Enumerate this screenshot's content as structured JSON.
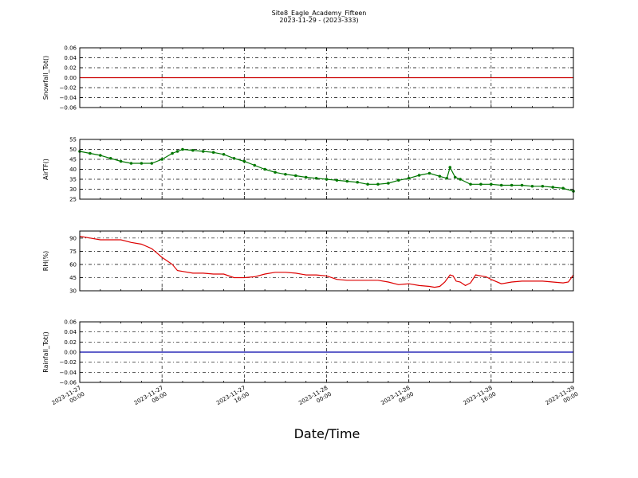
{
  "title_line1": "Site8_Eagle_Academy_Fifteen",
  "title_line2": "2023-11-29 - (2023-333)",
  "xlabel": "Date/Time",
  "x_ticks": [
    [
      "2023-11-27",
      "00:00"
    ],
    [
      "2023-11-27",
      "08:00"
    ],
    [
      "2023-11-27",
      "16:00"
    ],
    [
      "2023-11-28",
      "00:00"
    ],
    [
      "2023-11-28",
      "08:00"
    ],
    [
      "2023-11-28",
      "16:00"
    ],
    [
      "2023-11-29",
      "00:00"
    ]
  ],
  "chart_data": [
    {
      "type": "line",
      "ylabel": "Snowfall_Tot()",
      "ylim": [
        -0.06,
        0.06
      ],
      "yticks": [
        -0.06,
        -0.04,
        -0.02,
        0.0,
        0.02,
        0.04,
        0.06
      ],
      "ytick_labels": [
        "−0.06",
        "−0.04",
        "−0.02",
        "0.00",
        "0.02",
        "0.04",
        "0.06"
      ],
      "grid": true,
      "color": "#cc0000",
      "markers": false,
      "series": [
        {
          "x_hours": [
            0,
            48
          ],
          "values": [
            0,
            0
          ]
        }
      ]
    },
    {
      "type": "line",
      "ylabel": "AirTF()",
      "ylim": [
        25,
        55
      ],
      "yticks": [
        25,
        30,
        35,
        40,
        45,
        50,
        55
      ],
      "ytick_labels": [
        "25",
        "30",
        "35",
        "40",
        "45",
        "50",
        "55"
      ],
      "grid": true,
      "color": "#007700",
      "markers": true,
      "series": [
        {
          "x_hours": [
            0,
            1,
            2,
            3,
            4,
            5,
            6,
            7,
            8,
            9,
            9.5,
            10,
            11,
            12,
            13,
            14,
            15,
            16,
            17,
            18,
            19,
            20,
            21,
            22,
            23,
            24,
            25,
            26,
            27,
            28,
            29,
            30,
            31,
            32,
            33,
            34,
            35,
            35.7,
            36,
            36.5,
            37,
            38,
            39,
            40,
            41,
            42,
            43,
            44,
            45,
            46,
            47,
            48
          ],
          "values": [
            49,
            48,
            47,
            45.5,
            44,
            43,
            43,
            43,
            45,
            48,
            49,
            50,
            49.5,
            49,
            48.5,
            47.5,
            45.5,
            44,
            42,
            40,
            38.5,
            37.5,
            36.8,
            36,
            35.5,
            35,
            34.5,
            34,
            33.5,
            32.5,
            32.5,
            33,
            34.5,
            35.5,
            37,
            38,
            36.5,
            35.5,
            41,
            36,
            35,
            32.5,
            32.5,
            32.5,
            32,
            32,
            32,
            31.5,
            31.5,
            31,
            30.5,
            29
          ]
        }
      ]
    },
    {
      "type": "line",
      "ylabel": "RH(%)",
      "ylim": [
        30,
        98
      ],
      "yticks": [
        30,
        45,
        60,
        75,
        90
      ],
      "ytick_labels": [
        "30",
        "45",
        "60",
        "75",
        "90"
      ],
      "grid": true,
      "color": "#dd0000",
      "markers": false,
      "series": [
        {
          "x_hours": [
            0,
            1,
            2,
            3,
            4,
            5,
            6,
            7,
            8,
            9,
            9.5,
            10,
            11,
            12,
            13,
            14,
            15,
            16,
            17,
            18,
            19,
            20,
            21,
            22,
            23,
            24,
            25,
            26,
            27,
            28,
            29,
            30,
            31,
            32,
            33,
            34,
            34.5,
            35,
            35.5,
            36,
            36.3,
            36.6,
            37,
            37.5,
            38,
            38.5,
            39,
            39.5,
            40,
            41,
            42,
            43,
            44,
            45,
            46,
            47,
            47.5,
            48
          ],
          "values": [
            92,
            90,
            88,
            88,
            88,
            85,
            83,
            78,
            68,
            60,
            53,
            52,
            50,
            50,
            49,
            49,
            45,
            45,
            46,
            49,
            51,
            51,
            50,
            48,
            48,
            47,
            43,
            42,
            42,
            42,
            42,
            40,
            37,
            38,
            36,
            35,
            34,
            35,
            40,
            48,
            47,
            41,
            40,
            36,
            39,
            48,
            47,
            46,
            43,
            38,
            40,
            41,
            41,
            41,
            40,
            39,
            40,
            48
          ]
        }
      ]
    },
    {
      "type": "line",
      "ylabel": "Rainfall_Tot()",
      "ylim": [
        -0.06,
        0.06
      ],
      "yticks": [
        -0.06,
        -0.04,
        -0.02,
        0.0,
        0.02,
        0.04,
        0.06
      ],
      "ytick_labels": [
        "−0.06",
        "−0.04",
        "−0.02",
        "0.00",
        "0.02",
        "0.04",
        "0.06"
      ],
      "grid": true,
      "color": "#0000aa",
      "markers": false,
      "series": [
        {
          "x_hours": [
            0,
            48
          ],
          "values": [
            0,
            0
          ]
        }
      ]
    }
  ]
}
